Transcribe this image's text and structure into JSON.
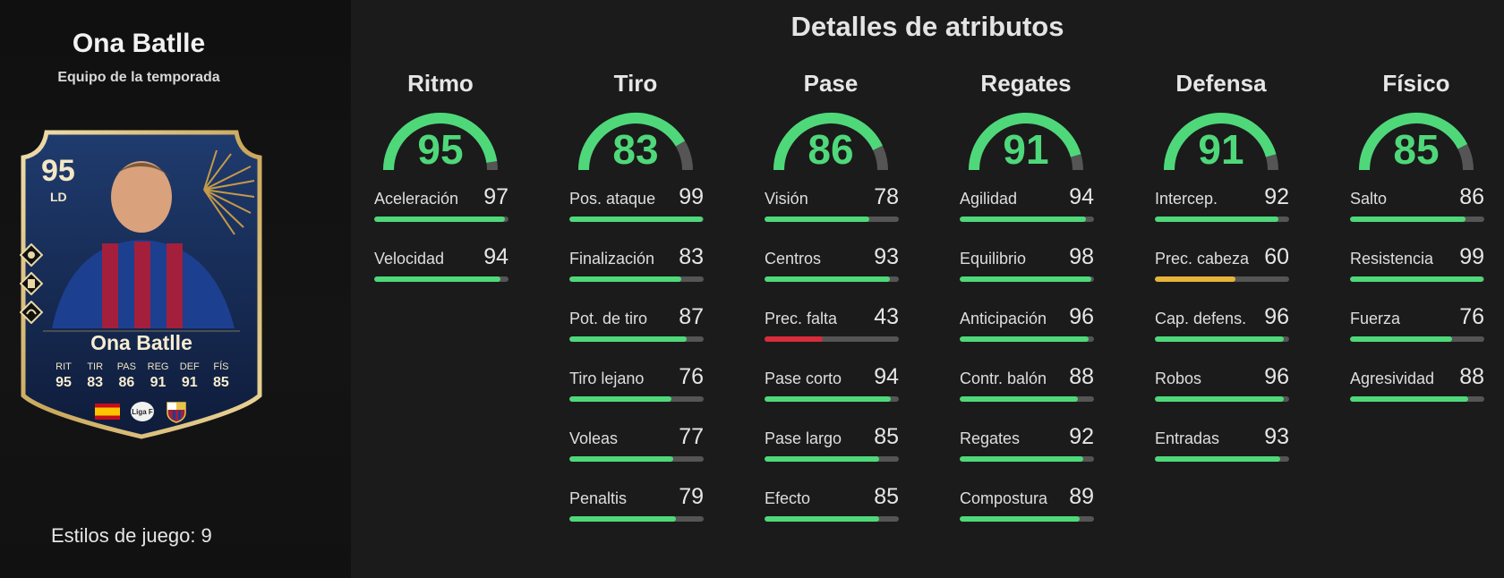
{
  "player": {
    "name": "Ona Batlle",
    "subtitle": "Equipo de la temporada",
    "playstyles_label": "Estilos de juego: 9"
  },
  "card": {
    "rating": "95",
    "position": "LD",
    "name": "Ona Batlle",
    "league_badge": "Liga F",
    "stats": [
      {
        "label": "RIT",
        "value": "95"
      },
      {
        "label": "TIR",
        "value": "83"
      },
      {
        "label": "PAS",
        "value": "86"
      },
      {
        "label": "REG",
        "value": "91"
      },
      {
        "label": "DEF",
        "value": "91"
      },
      {
        "label": "FÍS",
        "value": "85"
      }
    ]
  },
  "title": "Detalles de atributos",
  "colors": {
    "high": "#4fd87a",
    "mid": "#e6b43a",
    "low": "#d92c3a",
    "track": "#555555"
  },
  "categories": [
    {
      "name": "Ritmo",
      "value": "95",
      "attributes": [
        {
          "name": "Aceleración",
          "value": "97"
        },
        {
          "name": "Velocidad",
          "value": "94"
        }
      ]
    },
    {
      "name": "Tiro",
      "value": "83",
      "attributes": [
        {
          "name": "Pos. ataque",
          "value": "99"
        },
        {
          "name": "Finalización",
          "value": "83"
        },
        {
          "name": "Pot. de tiro",
          "value": "87"
        },
        {
          "name": "Tiro lejano",
          "value": "76"
        },
        {
          "name": "Voleas",
          "value": "77"
        },
        {
          "name": "Penaltis",
          "value": "79"
        }
      ]
    },
    {
      "name": "Pase",
      "value": "86",
      "attributes": [
        {
          "name": "Visión",
          "value": "78"
        },
        {
          "name": "Centros",
          "value": "93"
        },
        {
          "name": "Prec. falta",
          "value": "43"
        },
        {
          "name": "Pase corto",
          "value": "94"
        },
        {
          "name": "Pase largo",
          "value": "85"
        },
        {
          "name": "Efecto",
          "value": "85"
        }
      ]
    },
    {
      "name": "Regates",
      "value": "91",
      "attributes": [
        {
          "name": "Agilidad",
          "value": "94"
        },
        {
          "name": "Equilibrio",
          "value": "98"
        },
        {
          "name": "Anticipación",
          "value": "96"
        },
        {
          "name": "Contr. balón",
          "value": "88"
        },
        {
          "name": "Regates",
          "value": "92"
        },
        {
          "name": "Compostura",
          "value": "89"
        }
      ]
    },
    {
      "name": "Defensa",
      "value": "91",
      "attributes": [
        {
          "name": "Intercep.",
          "value": "92"
        },
        {
          "name": "Prec. cabeza",
          "value": "60"
        },
        {
          "name": "Cap. defens.",
          "value": "96"
        },
        {
          "name": "Robos",
          "value": "96"
        },
        {
          "name": "Entradas",
          "value": "93"
        }
      ]
    },
    {
      "name": "Físico",
      "value": "85",
      "attributes": [
        {
          "name": "Salto",
          "value": "86"
        },
        {
          "name": "Resistencia",
          "value": "99"
        },
        {
          "name": "Fuerza",
          "value": "76"
        },
        {
          "name": "Agresividad",
          "value": "88"
        }
      ]
    }
  ]
}
